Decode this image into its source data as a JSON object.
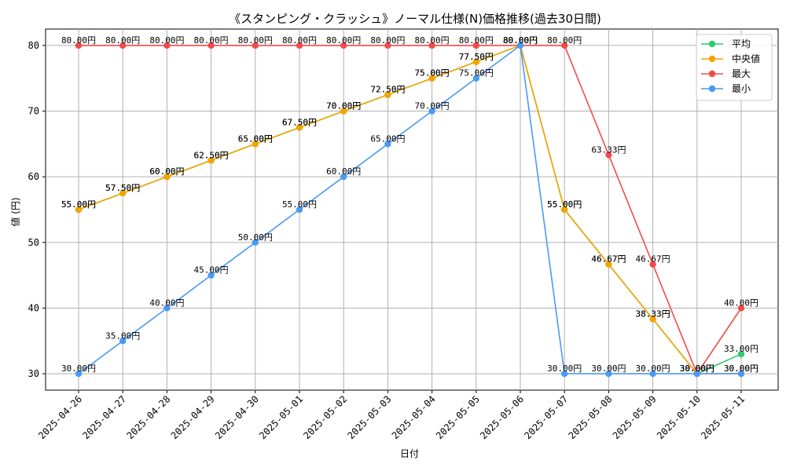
{
  "chart_data": {
    "type": "line",
    "title": "《スタンピング・クラッシュ》ノーマル仕様(N)価格推移(過去30日間)",
    "xlabel": "日付",
    "ylabel": "値 (円)",
    "ylim": [
      27.5,
      82.5
    ],
    "yticks": [
      30,
      40,
      50,
      60,
      70,
      80
    ],
    "grid": true,
    "legend_position": "top-right",
    "label_suffix": "円",
    "categories": [
      "2025-04-26",
      "2025-04-27",
      "2025-04-28",
      "2025-04-29",
      "2025-04-30",
      "2025-05-01",
      "2025-05-02",
      "2025-05-03",
      "2025-05-04",
      "2025-05-05",
      "2025-05-06",
      "2025-05-07",
      "2025-05-08",
      "2025-05-09",
      "2025-05-10",
      "2025-05-11"
    ],
    "series": [
      {
        "name": "平均",
        "color": "#2ecc71",
        "values": [
          55,
          57.5,
          60,
          62.5,
          65,
          67.5,
          70,
          72.5,
          75,
          77.5,
          80,
          55,
          46.67,
          38.33,
          30,
          33
        ]
      },
      {
        "name": "中央値",
        "color": "#f5a300",
        "values": [
          55,
          57.5,
          60,
          62.5,
          65,
          67.5,
          70,
          72.5,
          75,
          77.5,
          80,
          55,
          46.67,
          38.33,
          30,
          30
        ]
      },
      {
        "name": "最大",
        "color": "#f24b4b",
        "values": [
          80,
          80,
          80,
          80,
          80,
          80,
          80,
          80,
          80,
          80,
          80,
          80,
          63.33,
          46.67,
          30,
          40
        ]
      },
      {
        "name": "最小",
        "color": "#4a9af2",
        "values": [
          30,
          35,
          40,
          45,
          50,
          55,
          60,
          65,
          70,
          75,
          80,
          30,
          30,
          30,
          30,
          30
        ]
      }
    ]
  }
}
